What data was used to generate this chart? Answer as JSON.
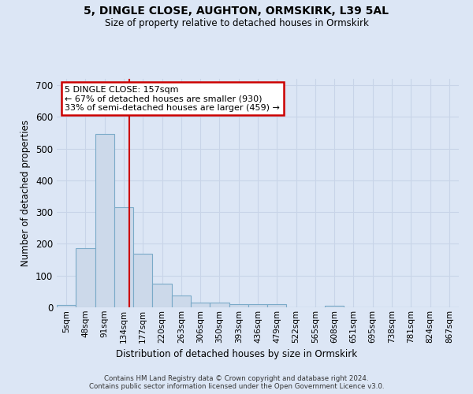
{
  "title": "5, DINGLE CLOSE, AUGHTON, ORMSKIRK, L39 5AL",
  "subtitle": "Size of property relative to detached houses in Ormskirk",
  "xlabel": "Distribution of detached houses by size in Ormskirk",
  "ylabel": "Number of detached properties",
  "bar_color": "#ccd9ea",
  "bar_edge_color": "#7aaac8",
  "bar_categories": [
    "5sqm",
    "48sqm",
    "91sqm",
    "134sqm",
    "177sqm",
    "220sqm",
    "263sqm",
    "306sqm",
    "350sqm",
    "393sqm",
    "436sqm",
    "479sqm",
    "522sqm",
    "565sqm",
    "608sqm",
    "651sqm",
    "695sqm",
    "738sqm",
    "781sqm",
    "824sqm",
    "867sqm"
  ],
  "bar_values": [
    8,
    185,
    545,
    315,
    168,
    75,
    38,
    15,
    15,
    10,
    10,
    10,
    0,
    0,
    5,
    0,
    0,
    0,
    0,
    0,
    0
  ],
  "red_line_x": 3.3,
  "annotation_text": "5 DINGLE CLOSE: 157sqm\n← 67% of detached houses are smaller (930)\n33% of semi-detached houses are larger (459) →",
  "annotation_box_color": "white",
  "annotation_box_edge_color": "#cc0000",
  "footnote": "Contains HM Land Registry data © Crown copyright and database right 2024.\nContains public sector information licensed under the Open Government Licence v3.0.",
  "ylim": [
    0,
    720
  ],
  "yticks": [
    0,
    100,
    200,
    300,
    400,
    500,
    600,
    700
  ],
  "grid_color": "#c8d4e8",
  "background_color": "#dce6f5",
  "plot_bg_color": "#dce6f5",
  "title_fontsize": 10,
  "subtitle_fontsize": 9
}
